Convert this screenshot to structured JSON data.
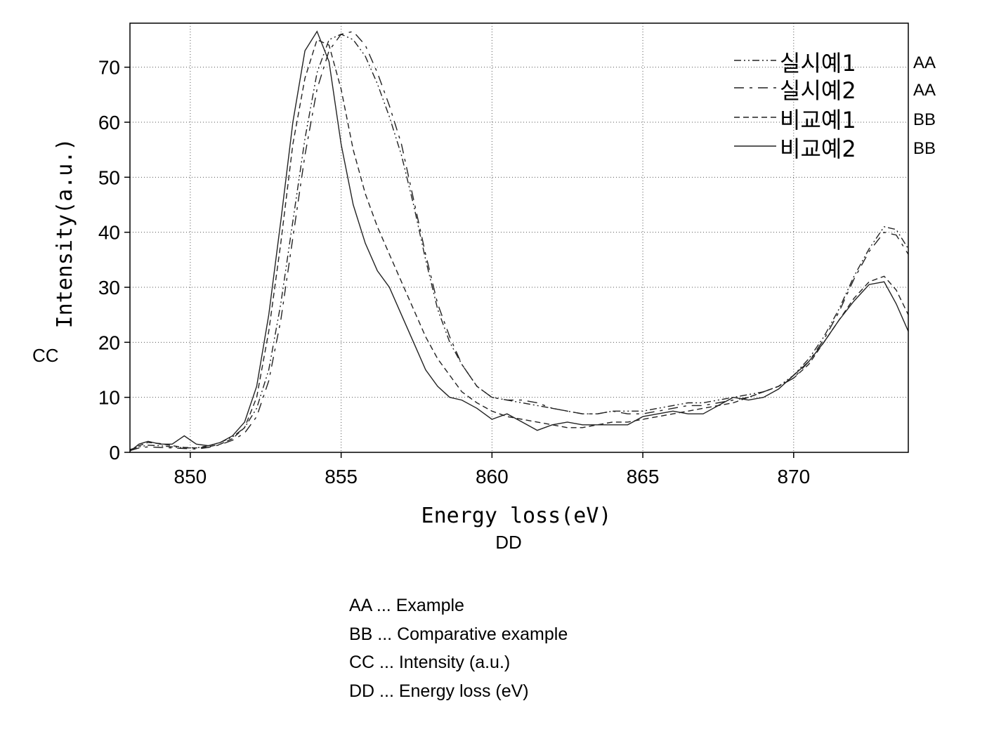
{
  "chart_data": {
    "type": "line",
    "title": "",
    "xlabel": "Energy loss(eV)",
    "xlabel_code": "DD",
    "ylabel": "Intensity(a.u.)",
    "ylabel_code": "CC",
    "xlim": [
      848,
      873.8
    ],
    "ylim": [
      0,
      78
    ],
    "xticks": [
      850,
      855,
      860,
      865,
      870
    ],
    "yticks": [
      0,
      10,
      20,
      30,
      40,
      50,
      60,
      70
    ],
    "grid": "dotted",
    "legend_position": "top-right",
    "series": [
      {
        "name": "실시예1",
        "code": "AA",
        "dash": "10 4 2 4 2 4",
        "x": [
          848,
          848.3,
          848.6,
          849,
          849.4,
          849.8,
          850.2,
          850.6,
          851,
          851.4,
          851.8,
          852.2,
          852.6,
          853,
          853.4,
          853.8,
          854.2,
          854.6,
          855,
          855.4,
          855.8,
          856.2,
          856.6,
          857,
          857.4,
          857.8,
          858.2,
          858.6,
          859,
          859.5,
          860,
          860.5,
          861,
          861.5,
          862,
          862.5,
          863,
          863.5,
          864,
          864.5,
          865,
          865.5,
          866,
          866.5,
          867,
          867.5,
          868,
          868.5,
          869,
          869.5,
          870,
          870.5,
          871,
          871.5,
          872,
          872.5,
          873,
          873.4,
          873.8
        ],
        "values": [
          0.5,
          1,
          1.3,
          1.2,
          1.0,
          0.8,
          0.8,
          1.2,
          1.8,
          2.8,
          4.5,
          8,
          15,
          27,
          42,
          57,
          69,
          75,
          76,
          75,
          72,
          67,
          61,
          54,
          45,
          35,
          26,
          20,
          16,
          12,
          10,
          9.5,
          9,
          8.5,
          8,
          7.5,
          7,
          7,
          7.5,
          7.5,
          7.5,
          8,
          8.5,
          9,
          9,
          9.5,
          10,
          10.5,
          11,
          12,
          14,
          17,
          21,
          26,
          32,
          37,
          41,
          40.5,
          37
        ]
      },
      {
        "name": "실시예2",
        "code": "AA",
        "dash": "14 8 4 8",
        "x": [
          848,
          848.3,
          848.6,
          849,
          849.4,
          849.8,
          850.2,
          850.6,
          851,
          851.4,
          851.8,
          852.2,
          852.6,
          853,
          853.4,
          853.8,
          854.2,
          854.6,
          855,
          855.4,
          855.8,
          856.2,
          856.6,
          857,
          857.4,
          857.8,
          858.2,
          858.6,
          859,
          859.5,
          860,
          860.5,
          861,
          861.5,
          862,
          862.5,
          863,
          863.5,
          864,
          864.5,
          865,
          865.5,
          866,
          866.5,
          867,
          867.5,
          868,
          868.5,
          869,
          869.5,
          870,
          870.5,
          871,
          871.5,
          872,
          872.5,
          873,
          873.4,
          873.8
        ],
        "values": [
          0.3,
          0.8,
          1.0,
          0.9,
          0.8,
          0.7,
          0.6,
          0.9,
          1.4,
          2.2,
          3.5,
          6.5,
          13,
          24,
          39,
          54,
          66,
          73,
          76,
          76.5,
          74,
          69,
          63,
          56,
          46,
          36,
          27,
          21,
          16,
          12,
          10,
          9.5,
          9.5,
          9,
          8,
          7.5,
          7,
          7,
          7.5,
          7,
          7,
          7.5,
          8,
          8.5,
          8.5,
          9,
          9.5,
          10,
          11,
          12,
          13.5,
          16.5,
          20.5,
          25.5,
          31.5,
          36.5,
          40,
          39.5,
          36
        ]
      },
      {
        "name": "비교예1",
        "code": "BB",
        "dash": "8 5",
        "x": [
          848,
          848.3,
          848.6,
          849,
          849.4,
          849.8,
          850.2,
          850.6,
          851,
          851.4,
          851.8,
          852.2,
          852.6,
          853,
          853.4,
          853.8,
          854.2,
          854.6,
          855,
          855.4,
          855.8,
          856.2,
          856.6,
          857,
          857.4,
          857.8,
          858.2,
          858.6,
          859,
          859.5,
          860,
          860.5,
          861,
          861.5,
          862,
          862.5,
          863,
          863.5,
          864,
          864.5,
          865,
          865.5,
          866,
          866.5,
          867,
          867.5,
          868,
          868.5,
          869,
          869.5,
          870,
          870.5,
          871,
          871.5,
          872,
          872.5,
          873,
          873.4,
          873.8
        ],
        "values": [
          0.3,
          1.2,
          1.8,
          1.6,
          1.2,
          0.9,
          0.8,
          1.0,
          1.5,
          2.5,
          4.5,
          10,
          22,
          38,
          56,
          68,
          75,
          74,
          66,
          55,
          47,
          41,
          36,
          31,
          26,
          21,
          17,
          14,
          11,
          9,
          7.5,
          6.5,
          6,
          5.5,
          5,
          4.5,
          4.5,
          5,
          5.5,
          5.5,
          6,
          6.5,
          7,
          7.5,
          8,
          8.5,
          9,
          10,
          11,
          12,
          13.5,
          16,
          20,
          24,
          28,
          31,
          32,
          29.5,
          25
        ]
      },
      {
        "name": "비교예2",
        "code": "BB",
        "dash": "",
        "x": [
          848,
          848.3,
          848.6,
          849,
          849.4,
          849.8,
          850.2,
          850.6,
          851,
          851.4,
          851.8,
          852.2,
          852.6,
          853,
          853.4,
          853.8,
          854.2,
          854.6,
          855,
          855.4,
          855.8,
          856.2,
          856.6,
          857,
          857.4,
          857.8,
          858.2,
          858.6,
          859,
          859.5,
          860,
          860.5,
          861,
          861.5,
          862,
          862.5,
          863,
          863.5,
          864,
          864.5,
          865,
          865.5,
          866,
          866.5,
          867,
          867.5,
          868,
          868.5,
          869,
          869.5,
          870,
          870.5,
          871,
          871.5,
          872,
          872.5,
          873,
          873.4,
          873.8
        ],
        "values": [
          0.2,
          1.5,
          2.0,
          1.5,
          1.5,
          3.0,
          1.5,
          1.2,
          1.8,
          3.0,
          5.5,
          12,
          25,
          42,
          60,
          73,
          76.5,
          71,
          56,
          45,
          38,
          33,
          30,
          25,
          20,
          15,
          12,
          10,
          9.5,
          8,
          6,
          7,
          5.5,
          4,
          5,
          5.5,
          5,
          5,
          5,
          5,
          6.5,
          7,
          7.5,
          7,
          7,
          8.5,
          10,
          9.5,
          10,
          11.5,
          14,
          16.5,
          20,
          24,
          27.5,
          30.5,
          31,
          27,
          22
        ]
      }
    ]
  },
  "notes": [
    "AA ... Example",
    "BB ... Comparative example",
    "CC ... Intensity (a.u.)",
    "DD ... Energy loss (eV)"
  ]
}
